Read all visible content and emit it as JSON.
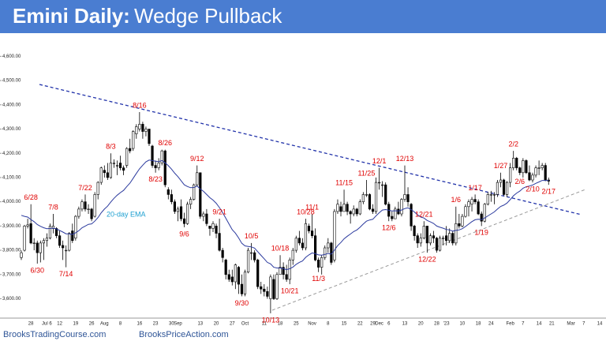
{
  "chart_data": {
    "type": "candlestick",
    "title": "Emini Daily:",
    "subtitle": "Wedge Pullback",
    "footer": [
      "BrooksTradingCourse.com",
      "BrooksPriceAction.com"
    ],
    "ylim": [
      3530,
      4650
    ],
    "yticks": [
      {
        "value": 3600,
        "label": "3,600.00"
      },
      {
        "value": 3700,
        "label": "3,700.00"
      },
      {
        "value": 3800,
        "label": "3,800.00"
      },
      {
        "value": 3900,
        "label": "3,900.00"
      },
      {
        "value": 4000,
        "label": "4,000.00"
      },
      {
        "value": 4100,
        "label": "4,100.00"
      },
      {
        "value": 4200,
        "label": "4,200.00"
      },
      {
        "value": 4300,
        "label": "4,300.00"
      },
      {
        "value": 4400,
        "label": "4,400.00"
      },
      {
        "value": 4500,
        "label": "4,500.00"
      },
      {
        "value": 4600,
        "label": "4,600.00"
      }
    ],
    "categories": [
      null,
      null,
      null,
      "28",
      null,
      null,
      null,
      null,
      "Jul 6",
      null,
      null,
      null,
      "12",
      null,
      null,
      null,
      null,
      "19",
      null,
      null,
      null,
      null,
      "26",
      null,
      null,
      null,
      "Aug",
      null,
      null,
      null,
      null,
      "8",
      null,
      null,
      null,
      null,
      null,
      "16",
      null,
      null,
      null,
      null,
      "23",
      null,
      null,
      null,
      null,
      "30",
      null,
      "Sep",
      null,
      null,
      null,
      null,
      null,
      null,
      "13",
      null,
      null,
      null,
      null,
      "20",
      null,
      null,
      null,
      null,
      "27",
      null,
      null,
      null,
      "Oct",
      null,
      null,
      null,
      null,
      null,
      "11",
      null,
      null,
      null,
      null,
      "18",
      null,
      null,
      null,
      null,
      "25",
      null,
      null,
      null,
      null,
      "Nov",
      null,
      null,
      null,
      null,
      "8",
      null,
      null,
      null,
      null,
      "15",
      null,
      null,
      null,
      null,
      "22",
      null,
      null,
      null,
      "29",
      null,
      "Dec",
      null,
      null,
      "6",
      null,
      null,
      null,
      null,
      "13",
      null,
      null,
      null,
      null,
      "20",
      null,
      null,
      null,
      null,
      "28",
      null,
      null,
      "'23",
      null,
      null,
      null,
      null,
      "10",
      null,
      null,
      null,
      null,
      "18",
      null,
      null,
      null,
      "24",
      null,
      null,
      null,
      null,
      null,
      "Feb",
      null,
      null,
      null,
      "7",
      null,
      null,
      null,
      null,
      "14",
      null,
      null,
      null,
      "21",
      null,
      null,
      null,
      null,
      null,
      "Mar",
      null,
      null,
      null,
      "7",
      null,
      null,
      null,
      null,
      "14"
    ],
    "candles": [
      [
        3770,
        3800,
        3760,
        3790
      ],
      [
        3800,
        3905,
        3795,
        3900
      ],
      [
        3900,
        3930,
        3890,
        3905
      ],
      [
        3910,
        3990,
        3825,
        3830
      ],
      [
        3830,
        3850,
        3800,
        3830
      ],
      [
        3830,
        3840,
        3745,
        3790
      ],
      [
        3790,
        3840,
        3750,
        3830
      ],
      [
        3830,
        3850,
        3760,
        3840
      ],
      [
        3840,
        3870,
        3815,
        3850
      ],
      [
        3850,
        3910,
        3845,
        3900
      ],
      [
        3890,
        3950,
        3870,
        3900
      ],
      [
        3890,
        3895,
        3850,
        3860
      ],
      [
        3860,
        3880,
        3810,
        3820
      ],
      [
        3820,
        3840,
        3760,
        3810
      ],
      [
        3800,
        3820,
        3730,
        3800
      ],
      [
        3800,
        3875,
        3795,
        3870
      ],
      [
        3880,
        3910,
        3830,
        3840
      ],
      [
        3850,
        3945,
        3840,
        3940
      ],
      [
        3940,
        3980,
        3930,
        3970
      ],
      [
        3970,
        4010,
        3960,
        4000
      ],
      [
        4000,
        4030,
        3960,
        3970
      ],
      [
        3970,
        3990,
        3950,
        3970
      ],
      [
        3970,
        3975,
        3920,
        3930
      ],
      [
        3940,
        4040,
        3935,
        4030
      ],
      [
        4030,
        4085,
        4010,
        4080
      ],
      [
        4080,
        4145,
        4070,
        4140
      ],
      [
        4130,
        4150,
        4100,
        4120
      ],
      [
        4120,
        4160,
        4090,
        4100
      ],
      [
        4100,
        4200,
        4095,
        4160
      ],
      [
        4160,
        4175,
        4140,
        4160
      ],
      [
        4150,
        4170,
        4110,
        4150
      ],
      [
        4160,
        4190,
        4130,
        4140
      ],
      [
        4140,
        4150,
        4110,
        4130
      ],
      [
        4150,
        4225,
        4140,
        4220
      ],
      [
        4220,
        4260,
        4200,
        4210
      ],
      [
        4220,
        4295,
        4210,
        4290
      ],
      [
        4280,
        4320,
        4260,
        4310
      ],
      [
        4300,
        4370,
        4290,
        4320
      ],
      [
        4320,
        4330,
        4260,
        4290
      ],
      [
        4290,
        4310,
        4270,
        4300
      ],
      [
        4300,
        4300,
        4230,
        4240
      ],
      [
        4230,
        4235,
        4140,
        4150
      ],
      [
        4150,
        4170,
        4120,
        4140
      ],
      [
        4140,
        4180,
        4130,
        4160
      ],
      [
        4160,
        4215,
        4150,
        4210
      ],
      [
        4210,
        4215,
        4060,
        4070
      ],
      [
        4050,
        4060,
        4010,
        4030
      ],
      [
        4030,
        4050,
        3990,
        4000
      ],
      [
        4000,
        4010,
        3950,
        3960
      ],
      [
        3960,
        3980,
        3920,
        3970
      ],
      [
        3980,
        4010,
        3920,
        3930
      ],
      [
        3930,
        3955,
        3895,
        3910
      ],
      [
        3910,
        4000,
        3905,
        3990
      ],
      [
        3990,
        4020,
        3970,
        4010
      ],
      [
        4010,
        4075,
        4005,
        4070
      ],
      [
        4070,
        4150,
        4065,
        4120
      ],
      [
        4120,
        4120,
        3930,
        3940
      ],
      [
        3940,
        3960,
        3920,
        3950
      ],
      [
        3950,
        3970,
        3900,
        3910
      ],
      [
        3900,
        3900,
        3860,
        3890
      ],
      [
        3890,
        3920,
        3875,
        3910
      ],
      [
        3900,
        3910,
        3850,
        3870
      ],
      [
        3870,
        3930,
        3795,
        3800
      ],
      [
        3800,
        3810,
        3750,
        3770
      ],
      [
        3760,
        3765,
        3680,
        3700
      ],
      [
        3700,
        3720,
        3670,
        3680
      ],
      [
        3690,
        3720,
        3655,
        3670
      ],
      [
        3670,
        3745,
        3640,
        3740
      ],
      [
        3730,
        3735,
        3620,
        3660
      ],
      [
        3660,
        3700,
        3610,
        3620
      ],
      [
        3620,
        3720,
        3610,
        3710
      ],
      [
        3710,
        3810,
        3705,
        3800
      ],
      [
        3790,
        3830,
        3760,
        3790
      ],
      [
        3790,
        3800,
        3750,
        3760
      ],
      [
        3760,
        3765,
        3640,
        3650
      ],
      [
        3650,
        3670,
        3620,
        3640
      ],
      [
        3640,
        3660,
        3610,
        3630
      ],
      [
        3630,
        3650,
        3600,
        3610
      ],
      [
        3600,
        3700,
        3540,
        3690
      ],
      [
        3680,
        3700,
        3595,
        3600
      ],
      [
        3600,
        3710,
        3595,
        3700
      ],
      [
        3700,
        3780,
        3700,
        3730
      ],
      [
        3730,
        3750,
        3680,
        3700
      ],
      [
        3700,
        3740,
        3670,
        3680
      ],
      [
        3680,
        3770,
        3660,
        3760
      ],
      [
        3760,
        3810,
        3740,
        3800
      ],
      [
        3800,
        3860,
        3790,
        3850
      ],
      [
        3850,
        3880,
        3820,
        3830
      ],
      [
        3830,
        3850,
        3800,
        3810
      ],
      [
        3810,
        3930,
        3800,
        3910
      ],
      [
        3900,
        3910,
        3870,
        3880
      ],
      [
        3880,
        3950,
        3850,
        3860
      ],
      [
        3860,
        3890,
        3755,
        3760
      ],
      [
        3760,
        3770,
        3710,
        3730
      ],
      [
        3730,
        3780,
        3700,
        3770
      ],
      [
        3770,
        3820,
        3760,
        3810
      ],
      [
        3810,
        3850,
        3790,
        3830
      ],
      [
        3830,
        3835,
        3740,
        3750
      ],
      [
        3760,
        3970,
        3750,
        3960
      ],
      [
        3960,
        4010,
        3950,
        3990
      ],
      [
        3980,
        4000,
        3940,
        3960
      ],
      [
        3960,
        4050,
        3960,
        3990
      ],
      [
        3990,
        4000,
        3945,
        3960
      ],
      [
        3960,
        3965,
        3910,
        3950
      ],
      [
        3950,
        3985,
        3940,
        3970
      ],
      [
        3970,
        3975,
        3940,
        3950
      ],
      [
        3950,
        4010,
        3945,
        4000
      ],
      [
        4000,
        4040,
        3990,
        4030
      ],
      [
        4030,
        4090,
        4020,
        4030
      ],
      [
        4030,
        4035,
        3965,
        3970
      ],
      [
        3970,
        3990,
        3950,
        3960
      ],
      [
        3960,
        4100,
        3950,
        4080
      ],
      [
        4080,
        4140,
        4050,
        4080
      ],
      [
        4070,
        4085,
        4020,
        4070
      ],
      [
        4070,
        4080,
        3985,
        3990
      ],
      [
        3990,
        4000,
        3920,
        3940
      ],
      [
        3940,
        3960,
        3920,
        3930
      ],
      [
        3930,
        3980,
        3930,
        3970
      ],
      [
        3970,
        4000,
        3945,
        3950
      ],
      [
        3950,
        4015,
        3940,
        4010
      ],
      [
        4010,
        4150,
        4000,
        4030
      ],
      [
        4030,
        4060,
        3980,
        4000
      ],
      [
        3990,
        3995,
        3880,
        3900
      ],
      [
        3900,
        3905,
        3840,
        3860
      ],
      [
        3860,
        3870,
        3810,
        3830
      ],
      [
        3830,
        3870,
        3815,
        3850
      ],
      [
        3850,
        3920,
        3845,
        3900
      ],
      [
        3900,
        3900,
        3790,
        3830
      ],
      [
        3830,
        3870,
        3820,
        3860
      ],
      [
        3860,
        3880,
        3830,
        3850
      ],
      [
        3850,
        3855,
        3790,
        3800
      ],
      [
        3800,
        3860,
        3795,
        3850
      ],
      [
        3850,
        3860,
        3820,
        3850
      ],
      [
        3860,
        3900,
        3820,
        3840
      ],
      [
        3840,
        3890,
        3830,
        3870
      ],
      [
        3870,
        3880,
        3820,
        3830
      ],
      [
        3830,
        3980,
        3820,
        3910
      ],
      [
        3910,
        3950,
        3890,
        3900
      ],
      [
        3900,
        3950,
        3895,
        3940
      ],
      [
        3940,
        3990,
        3935,
        3980
      ],
      [
        3980,
        4010,
        3940,
        4000
      ],
      [
        3990,
        4020,
        3960,
        4010
      ],
      [
        4010,
        4030,
        3990,
        4000
      ],
      [
        4000,
        4010,
        3945,
        3950
      ],
      [
        3950,
        3960,
        3900,
        3920
      ],
      [
        3920,
        3995,
        3915,
        3990
      ],
      [
        3990,
        4040,
        3985,
        4030
      ],
      [
        4030,
        4045,
        4000,
        4030
      ],
      [
        4030,
        4040,
        3990,
        4030
      ],
      [
        4030,
        4090,
        4020,
        4080
      ],
      [
        4080,
        4120,
        4060,
        4090
      ],
      [
        4090,
        4095,
        4025,
        4030
      ],
      [
        4030,
        4085,
        4020,
        4080
      ],
      [
        4080,
        4160,
        4060,
        4140
      ],
      [
        4140,
        4210,
        4130,
        4180
      ],
      [
        4180,
        4185,
        4130,
        4140
      ],
      [
        4140,
        4145,
        4110,
        4120
      ],
      [
        4120,
        4180,
        4100,
        4170
      ],
      [
        4170,
        4175,
        4115,
        4120
      ],
      [
        4120,
        4150,
        4085,
        4090
      ],
      [
        4090,
        4120,
        4080,
        4110
      ],
      [
        4110,
        4150,
        4100,
        4140
      ],
      [
        4140,
        4170,
        4110,
        4140
      ],
      [
        4140,
        4160,
        4130,
        4150
      ],
      [
        4150,
        4160,
        4085,
        4090
      ],
      [
        4090,
        4100,
        4070,
        4085
      ],
      null,
      null,
      null,
      null,
      null,
      null,
      null,
      null,
      null,
      null,
      null,
      null,
      null,
      null,
      null,
      null
    ],
    "series": [
      {
        "name": "20-day EMA",
        "color": "#2b3a9e",
        "values": [
          3944,
          3940,
          3937,
          3927,
          3918,
          3906,
          3899,
          3893,
          3889,
          3890,
          3891,
          3888,
          3882,
          3875,
          3868,
          3868,
          3865,
          3872,
          3881,
          3893,
          3900,
          3907,
          3909,
          3920,
          3935,
          3955,
          3970,
          3982,
          3999,
          4014,
          4027,
          4038,
          4047,
          4063,
          4077,
          4097,
          4117,
          4136,
          4151,
          4165,
          4172,
          4170,
          4167,
          4166,
          4170,
          4161,
          4149,
          4135,
          4118,
          4104,
          4087,
          4070,
          4063,
          4058,
          4059,
          4065,
          4053,
          4043,
          4030,
          4017,
          4007,
          3994,
          3976,
          3956,
          3932,
          3908,
          3885,
          3871,
          3851,
          3829,
          3818,
          3816,
          3814,
          3809,
          3794,
          3779,
          3765,
          3750,
          3744,
          3730,
          3727,
          3727,
          3724,
          3720,
          3724,
          3731,
          3742,
          3750,
          3756,
          3771,
          3781,
          3789,
          3786,
          3781,
          3780,
          3783,
          3787,
          3784,
          3801,
          3819,
          3832,
          3847,
          3858,
          3867,
          3877,
          3884,
          3895,
          3908,
          3920,
          3925,
          3928,
          3942,
          3955,
          3966,
          3968,
          3965,
          3962,
          3963,
          3962,
          3966,
          3972,
          3975,
          3968,
          3958,
          3946,
          3937,
          3933,
          3923,
          3917,
          3911,
          3900,
          3895,
          3891,
          3886,
          3884,
          3879,
          3882,
          3884,
          3889,
          3898,
          3908,
          3918,
          3926,
          3928,
          3927,
          3933,
          3942,
          3950,
          3958,
          3970,
          3981,
          3986,
          3995,
          4009,
          4025,
          4036,
          4044,
          4056,
          4062,
          4065,
          4069,
          4076,
          4082,
          4088,
          4088,
          4088,
          null,
          null,
          null,
          null,
          null,
          null,
          null,
          null,
          null,
          null,
          null,
          null,
          null,
          null,
          null,
          null
        ]
      }
    ],
    "annotations": [
      "6/28",
      "6/30",
      "7/8",
      "7/14",
      "7/22",
      "8/3",
      "8/16",
      "8/23",
      "8/26",
      "9/6",
      "9/12",
      "9/21",
      "9/30",
      "10/5",
      "10/13",
      "10/18",
      "10/21",
      "10/28",
      "11/1",
      "11/3",
      "11/15",
      "11/25",
      "12/1",
      "12/6",
      "12/13",
      "12/21",
      "12/22",
      "1/6",
      "1/17",
      "1/19",
      "1/27",
      "2/2",
      "2/6",
      "2/10",
      "2/17"
    ]
  }
}
